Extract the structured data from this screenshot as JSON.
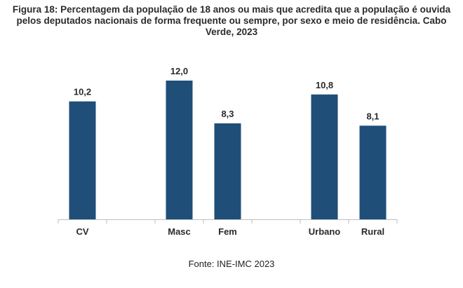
{
  "title_lines": [
    "Figura 18: Percentagem da população de 18 anos ou mais que acredita que a população é ouvida",
    "pelos deputados nacionais de forma frequente ou sempre, por sexo e meio de residência. Cabo",
    "Verde, 2023"
  ],
  "source": "Fonte: INE-IMC 2023",
  "colors": {
    "bar": "#1f4e79",
    "axis": "#bfbfbf",
    "label": "#2a2a2a"
  },
  "chart_data": {
    "type": "bar",
    "title": "Figura 18: Percentagem da população de 18 anos ou mais que acredita que a população é ouvida pelos deputados nacionais de forma frequente ou sempre, por sexo e meio de residência. Cabo Verde, 2023",
    "categories": [
      "CV",
      "",
      "Masc",
      "Fem",
      "",
      "Urbano",
      "Rural"
    ],
    "values": [
      10.2,
      null,
      12.0,
      8.3,
      null,
      10.8,
      8.1
    ],
    "value_labels": [
      "10,2",
      "",
      "12,0",
      "8,3",
      "",
      "10,8",
      "8,1"
    ],
    "xlabel": "",
    "ylabel": "",
    "ylim": [
      0,
      14
    ],
    "grid": false,
    "legend": "none"
  }
}
